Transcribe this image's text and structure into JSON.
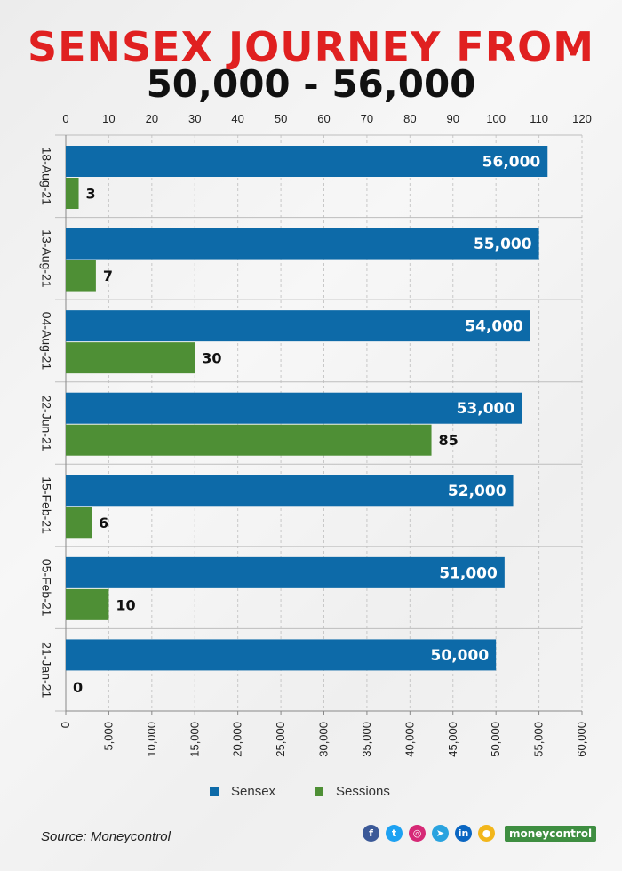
{
  "title_line1": "SENSEX JOURNEY FROM",
  "title_line2": "50,000 - 56,000",
  "source": "Source: Moneycontrol",
  "brand": "moneycontrol",
  "social_icons": [
    "facebook-icon",
    "twitter-icon",
    "instagram-icon",
    "telegram-icon",
    "linkedin-icon",
    "koo-icon"
  ],
  "colors": {
    "sensex": "#0d6aa8",
    "sessions": "#4e8f35",
    "title_red": "#e02020"
  },
  "chart_data": {
    "type": "bar",
    "orientation": "horizontal",
    "categories": [
      "18-Aug-21",
      "13-Aug-21",
      "04-Aug-21",
      "22-Jun-21",
      "15-Feb-21",
      "05-Feb-21",
      "21-Jan-21"
    ],
    "series": [
      {
        "name": "Sensex",
        "axis": "bottom",
        "values": [
          56000,
          55000,
          54000,
          53000,
          52000,
          51000,
          50000
        ],
        "labels": [
          "56,000",
          "55,000",
          "54,000",
          "53,000",
          "52,000",
          "51,000",
          "50,000"
        ]
      },
      {
        "name": "Sessions",
        "axis": "top",
        "values": [
          3,
          7,
          30,
          85,
          6,
          10,
          0
        ],
        "labels": [
          "3",
          "7",
          "30",
          "85",
          "6",
          "10",
          "0"
        ]
      }
    ],
    "top_axis": {
      "range": [
        0,
        120
      ],
      "ticks": [
        "0",
        "10",
        "20",
        "30",
        "40",
        "50",
        "60",
        "70",
        "80",
        "90",
        "100",
        "110",
        "120"
      ]
    },
    "bottom_axis": {
      "range": [
        0,
        60000
      ],
      "ticks": [
        "0",
        "5,000",
        "10,000",
        "15,000",
        "20,000",
        "25,000",
        "30,000",
        "35,000",
        "40,000",
        "45,000",
        "50,000",
        "55,000",
        "60,000"
      ]
    },
    "grid": true,
    "legend": "bottom"
  }
}
